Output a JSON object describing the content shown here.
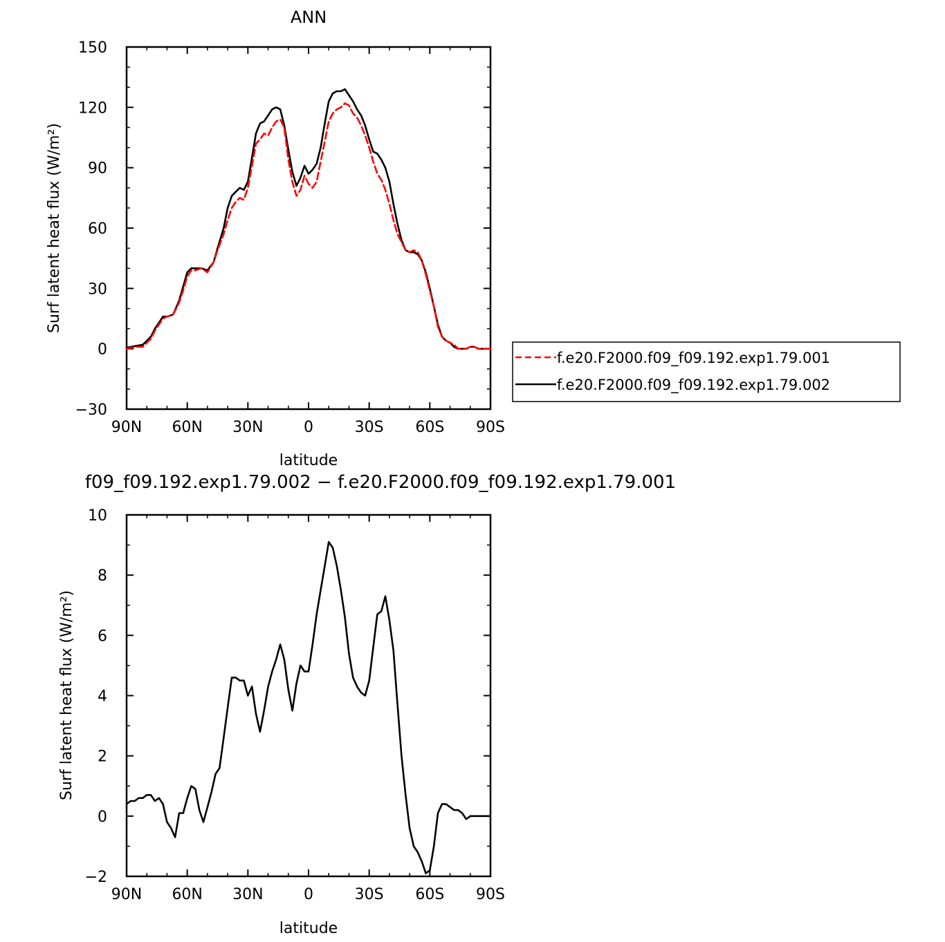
{
  "chart_data": [
    {
      "type": "line",
      "title": "ANN",
      "xlabel": "latitude",
      "ylabel": "Surf latent heat flux (W/m²)",
      "xlim": [
        -90,
        90
      ],
      "ylim": [
        -30,
        150
      ],
      "x_direction": "north-to-south",
      "x_ticks": [
        -90,
        -60,
        -30,
        0,
        30,
        60,
        90
      ],
      "x_tick_labels": [
        "90N",
        "60N",
        "30N",
        "0",
        "30S",
        "60S",
        "90S"
      ],
      "y_ticks": [
        -30,
        0,
        30,
        60,
        90,
        120,
        150
      ],
      "y_tick_labels": [
        "−30",
        "0",
        "30",
        "60",
        "90",
        "120",
        "150"
      ],
      "legend_position": "right",
      "series": [
        {
          "name": "f.e20.F2000.f09_f09.192.exp1.79.001",
          "color": "#ff0000",
          "dash": "dashed",
          "x": [
            -90,
            -85,
            -82,
            -80,
            -78,
            -76,
            -74,
            -72,
            -70,
            -67,
            -64,
            -62,
            -60,
            -58,
            -56,
            -53,
            -50,
            -47,
            -45,
            -42,
            -40,
            -38,
            -36,
            -34,
            -32,
            -30,
            -28,
            -26,
            -24,
            -22,
            -20,
            -18,
            -16,
            -14,
            -12,
            -10,
            -8,
            -6,
            -4,
            -2,
            0,
            2,
            4,
            6,
            8,
            10,
            12,
            14,
            16,
            18,
            20,
            22,
            24,
            26,
            28,
            30,
            32,
            34,
            36,
            38,
            40,
            42,
            44,
            46,
            48,
            50,
            52,
            54,
            56,
            58,
            60,
            62,
            64,
            66,
            68,
            70,
            72,
            74,
            76,
            78,
            80,
            82,
            84,
            86,
            88,
            90
          ],
          "y": [
            0,
            1,
            1,
            3,
            5,
            9,
            12,
            15,
            16,
            17,
            23,
            29,
            36,
            39,
            39,
            40,
            38,
            43,
            49,
            57,
            64,
            70,
            73,
            75,
            74,
            80,
            91,
            102,
            104,
            107,
            106,
            110,
            113,
            114,
            110,
            94,
            83,
            76,
            79,
            86,
            82,
            80,
            83,
            93,
            103,
            113,
            117,
            119,
            120,
            122,
            121,
            117,
            115,
            111,
            106,
            100,
            93,
            87,
            84,
            79,
            72,
            64,
            57,
            53,
            49,
            48,
            49,
            48,
            44,
            37,
            29,
            21,
            11,
            6,
            4,
            3,
            2,
            0,
            0,
            0,
            1,
            1,
            0,
            0,
            0,
            0
          ]
        },
        {
          "name": "f.e20.F2000.f09_f09.192.exp1.79.002",
          "color": "#000000",
          "dash": "solid",
          "x": [
            -90,
            -85,
            -82,
            -80,
            -78,
            -76,
            -74,
            -72,
            -70,
            -67,
            -64,
            -62,
            -60,
            -58,
            -56,
            -53,
            -50,
            -47,
            -45,
            -42,
            -40,
            -38,
            -36,
            -34,
            -32,
            -30,
            -28,
            -26,
            -24,
            -22,
            -20,
            -18,
            -16,
            -14,
            -12,
            -10,
            -8,
            -6,
            -4,
            -2,
            0,
            2,
            4,
            6,
            8,
            10,
            12,
            14,
            16,
            18,
            20,
            22,
            24,
            26,
            28,
            30,
            32,
            34,
            36,
            38,
            40,
            42,
            44,
            46,
            48,
            50,
            52,
            54,
            56,
            58,
            60,
            62,
            64,
            66,
            68,
            70,
            72,
            74,
            76,
            78,
            80,
            82,
            84,
            86,
            88,
            90
          ],
          "y": [
            0.5,
            1.5,
            2,
            4,
            6,
            10,
            13,
            16,
            16,
            17,
            24,
            31,
            38,
            40,
            40,
            40,
            39,
            43,
            50,
            60,
            70,
            76,
            78,
            80,
            79,
            83,
            95,
            107,
            112,
            113,
            116,
            119,
            120,
            119,
            111,
            99,
            88,
            81,
            85,
            91,
            87,
            89,
            92,
            100,
            112,
            123,
            127,
            128,
            128,
            129,
            126,
            123,
            119,
            116,
            111,
            104,
            98,
            97,
            94,
            90,
            83,
            72,
            62,
            54,
            49,
            48,
            48,
            47,
            44,
            38,
            30,
            21,
            12,
            6,
            4,
            3,
            1,
            0,
            0,
            0,
            1,
            1,
            0,
            0,
            0,
            0
          ]
        }
      ]
    },
    {
      "type": "line",
      "title": "f09_f09.192.exp1.79.002 − f.e20.F2000.f09_f09.192.exp1.79.001",
      "xlabel": "latitude",
      "ylabel": "Surf latent heat flux (W/m²)",
      "xlim": [
        -90,
        90
      ],
      "ylim": [
        -2,
        10
      ],
      "x_direction": "north-to-south",
      "x_ticks": [
        -90,
        -60,
        -30,
        0,
        30,
        60,
        90
      ],
      "x_tick_labels": [
        "90N",
        "60N",
        "30N",
        "0",
        "30S",
        "60S",
        "90S"
      ],
      "y_ticks": [
        -2,
        0,
        2,
        4,
        6,
        8,
        10
      ],
      "y_tick_labels": [
        "−2",
        "0",
        "2",
        "4",
        "6",
        "8",
        "10"
      ],
      "series": [
        {
          "color": "#000000",
          "dash": "solid",
          "x": [
            -90,
            -88,
            -86,
            -84,
            -82,
            -80,
            -78,
            -76,
            -74,
            -72,
            -70,
            -68,
            -66,
            -64,
            -62,
            -60,
            -58,
            -56,
            -54,
            -52,
            -50,
            -48,
            -46,
            -44,
            -42,
            -40,
            -38,
            -36,
            -34,
            -32,
            -30,
            -28,
            -26,
            -24,
            -22,
            -20,
            -18,
            -16,
            -14,
            -12,
            -10,
            -8,
            -6,
            -4,
            -2,
            0,
            2,
            4,
            6,
            8,
            10,
            12,
            14,
            16,
            18,
            20,
            22,
            24,
            26,
            28,
            30,
            32,
            34,
            36,
            38,
            40,
            42,
            44,
            46,
            48,
            50,
            52,
            54,
            56,
            58,
            60,
            62,
            64,
            66,
            68,
            70,
            72,
            74,
            76,
            78,
            80,
            82,
            84,
            86,
            88,
            90
          ],
          "y": [
            0.4,
            0.5,
            0.5,
            0.6,
            0.6,
            0.7,
            0.7,
            0.5,
            0.6,
            0.4,
            -0.2,
            -0.4,
            -0.7,
            0.1,
            0.1,
            0.6,
            1.0,
            0.9,
            0.2,
            -0.2,
            0.3,
            0.8,
            1.4,
            1.6,
            2.6,
            3.6,
            4.6,
            4.6,
            4.5,
            4.5,
            4.0,
            4.3,
            3.4,
            2.8,
            3.5,
            4.3,
            4.8,
            5.2,
            5.7,
            5.2,
            4.2,
            3.5,
            4.4,
            5.0,
            4.8,
            4.8,
            5.7,
            6.7,
            7.5,
            8.3,
            9.1,
            8.9,
            8.3,
            7.5,
            6.6,
            5.4,
            4.6,
            4.3,
            4.1,
            4.0,
            4.5,
            5.6,
            6.7,
            6.8,
            7.3,
            6.5,
            5.5,
            3.7,
            2.0,
            0.7,
            -0.4,
            -1.0,
            -1.2,
            -1.5,
            -1.9,
            -1.8,
            -1.0,
            0.1,
            0.4,
            0.4,
            0.3,
            0.2,
            0.2,
            0.1,
            -0.1,
            0.0,
            0.0,
            0.0,
            0.0,
            0.0,
            0.0
          ]
        }
      ]
    }
  ]
}
